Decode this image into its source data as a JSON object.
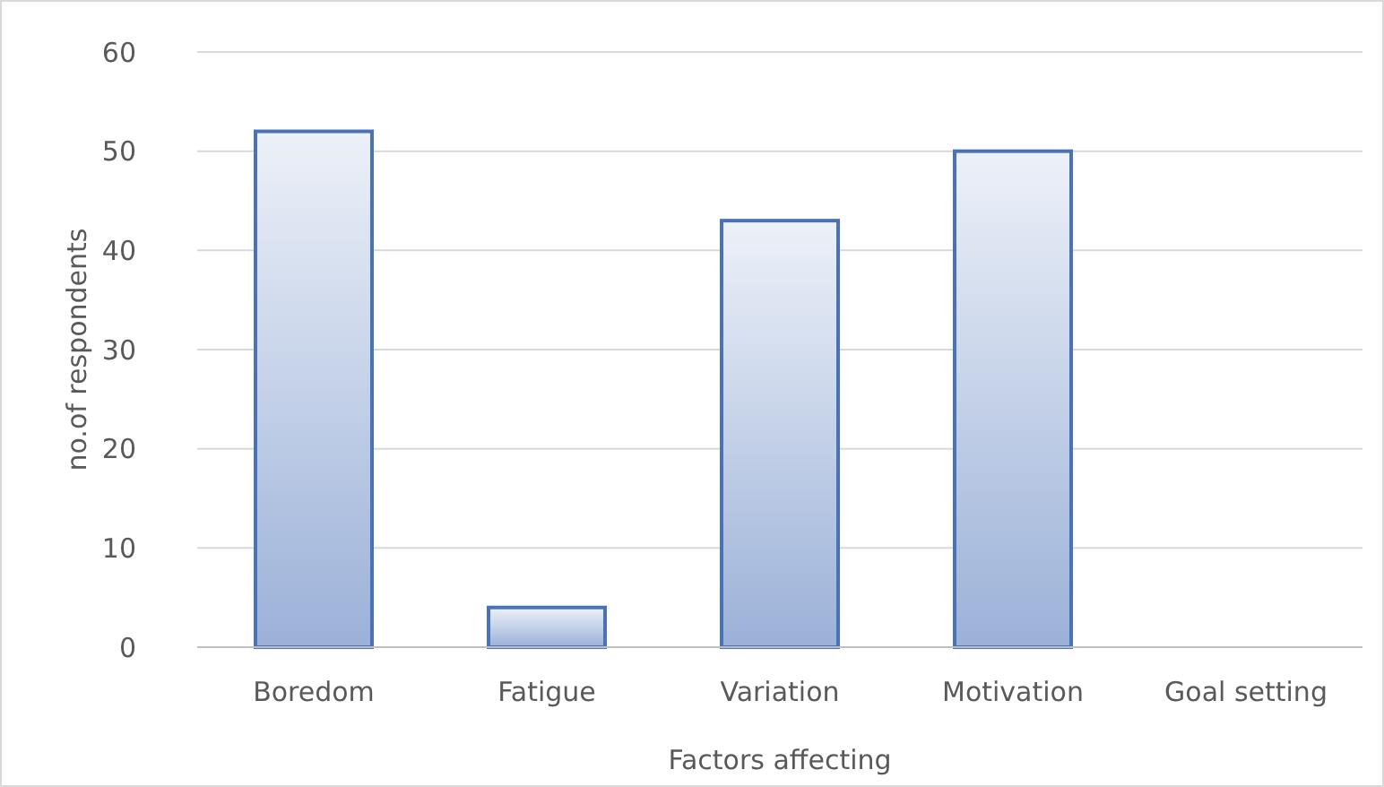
{
  "chart_data": {
    "type": "bar",
    "xlabel": "Factors affecting",
    "ylabel": "no.of respondents",
    "categories": [
      "Boredom",
      "Fatigue",
      "Variation",
      "Motivation",
      "Goal setting"
    ],
    "values": [
      52,
      4,
      43,
      50,
      0
    ],
    "color": "#4a72b8",
    "ylim": [
      0,
      60
    ],
    "yticks": [
      0,
      10,
      20,
      30,
      40,
      50,
      60
    ],
    "grid": "y"
  }
}
